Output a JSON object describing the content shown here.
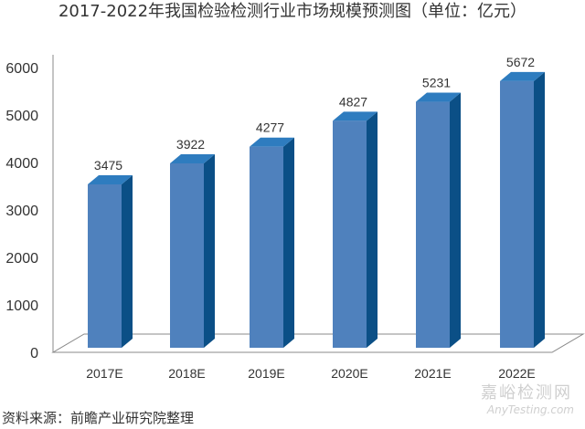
{
  "title": "2017-2022年我国检验检测行业市场规模预测图（单位：亿元）",
  "source": "资料来源：前瞻产业研究院整理",
  "watermark": {
    "cn": "嘉峪检测网",
    "en": "AnyTesting.com"
  },
  "colors": {
    "bar_front": "#4f81bd",
    "bar_top": "#2e7cbf",
    "bar_side": "#0b4f86",
    "axis": "#888888"
  },
  "chart_data": {
    "type": "bar",
    "style": "3d-column",
    "categories": [
      "2017E",
      "2018E",
      "2019E",
      "2020E",
      "2021E",
      "2022E"
    ],
    "values": [
      3475,
      3922,
      4277,
      4827,
      5231,
      5672
    ],
    "data_labels": [
      "3475",
      "3922",
      "4277",
      "4827",
      "5231",
      "5672"
    ],
    "yticks": [
      "0",
      "1000",
      "2000",
      "3000",
      "4000",
      "5000",
      "6000"
    ],
    "ylim": [
      0,
      6000
    ],
    "grid": false,
    "legend": "none"
  }
}
